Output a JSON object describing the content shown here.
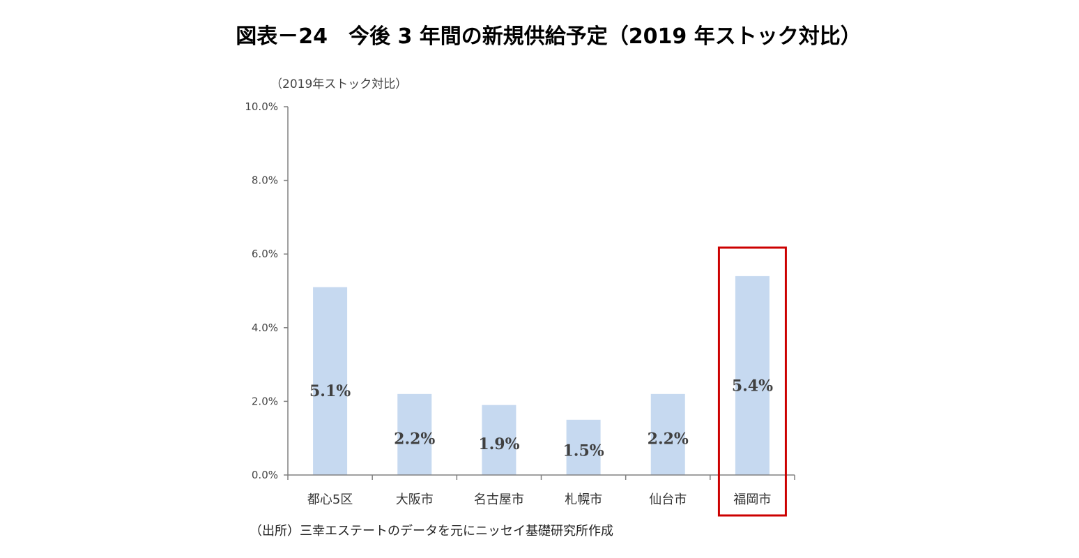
{
  "title": "図表－24　今後 3 年間の新規供給予定（2019 年ストック対比）",
  "source": "（出所）三幸エステートのデータを元にニッセイ基礎研究所作成",
  "colors": {
    "bar": "#c6d9f0",
    "axis": "#808080",
    "highlight_box": "#cc0000",
    "value_label": "#404040"
  },
  "chart_data": {
    "type": "bar",
    "title": "図表－24　今後 3 年間の新規供給予定（2019 年ストック対比）",
    "ylabel": "（2019年ストック対比）",
    "xlabel": "",
    "categories": [
      "都心5区",
      "大阪市",
      "名古屋市",
      "札幌市",
      "仙台市",
      "福岡市"
    ],
    "values": [
      5.1,
      2.2,
      1.9,
      1.5,
      2.2,
      5.4
    ],
    "value_labels": [
      "5.1%",
      "2.2%",
      "1.9%",
      "1.5%",
      "2.2%",
      "5.4%"
    ],
    "ylim": [
      0,
      10
    ],
    "yticks": [
      0,
      2,
      4,
      6,
      8,
      10
    ],
    "ytick_labels": [
      "0.0%",
      "2.0%",
      "4.0%",
      "6.0%",
      "8.0%",
      "10.0%"
    ],
    "grid": false,
    "legend": "none",
    "highlighted_category": "福岡市"
  }
}
